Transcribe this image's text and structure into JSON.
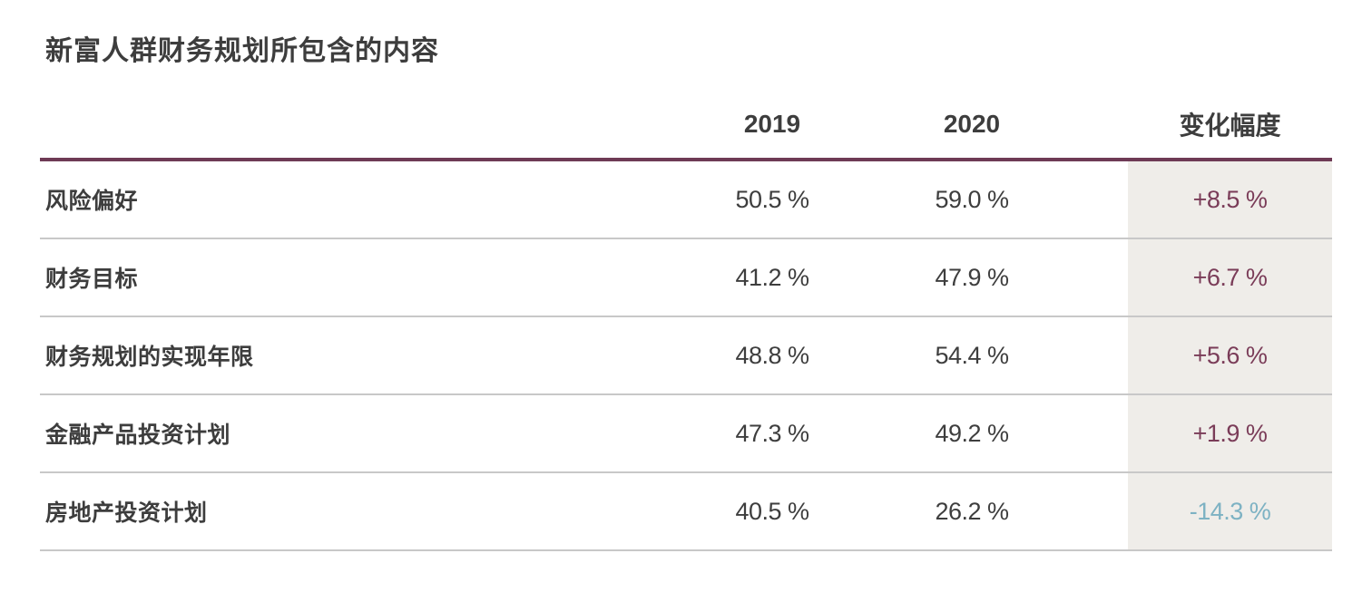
{
  "title": "新富人群财务规划所包含的内容",
  "table": {
    "headers": {
      "col_2019": "2019",
      "col_2020": "2020",
      "col_change": "变化幅度"
    },
    "rows": [
      {
        "label": "风险偏好",
        "y2019": "50.5 %",
        "y2020": "59.0 %",
        "change": "+8.5 %",
        "direction": "up"
      },
      {
        "label": "财务目标",
        "y2019": "41.2 %",
        "y2020": "47.9 %",
        "change": "+6.7 %",
        "direction": "up"
      },
      {
        "label": "财务规划的实现年限",
        "y2019": "48.8 %",
        "y2020": "54.4 %",
        "change": "+5.6 %",
        "direction": "up"
      },
      {
        "label": "金融产品投资计划",
        "y2019": "47.3 %",
        "y2020": "49.2 %",
        "change": "+1.9 %",
        "direction": "up"
      },
      {
        "label": "房地产投资计划",
        "y2019": "40.5 %",
        "y2020": "26.2 %",
        "change": "-14.3 %",
        "direction": "down"
      }
    ]
  },
  "colors": {
    "text_dark": "#3d3d3d",
    "accent_line_maroon": "#6e3a55",
    "change_positive": "#7a3c58",
    "change_negative": "#7db2c3",
    "change_column_bg": "#efede9",
    "row_separator": "#c8c8c8"
  },
  "chart_data": {
    "type": "table",
    "title": "新富人群财务规划所包含的内容",
    "columns": [
      "",
      "2019",
      "2020",
      "变化幅度"
    ],
    "rows": [
      [
        "风险偏好",
        "50.5 %",
        "59.0 %",
        "+8.5 %"
      ],
      [
        "财务目标",
        "41.2 %",
        "47.9 %",
        "+6.7 %"
      ],
      [
        "财务规划的实现年限",
        "48.8 %",
        "54.4 %",
        "+5.6 %"
      ],
      [
        "金融产品投资计划",
        "47.3 %",
        "49.2 %",
        "+1.9 %"
      ],
      [
        "房地产投资计划",
        "40.5 %",
        "26.2 %",
        "-14.3 %"
      ]
    ],
    "series": [
      {
        "name": "2019",
        "values": [
          50.5,
          41.2,
          48.8,
          47.3,
          40.5
        ]
      },
      {
        "name": "2020",
        "values": [
          59.0,
          47.9,
          54.4,
          49.2,
          26.2
        ]
      },
      {
        "name": "变化幅度",
        "values": [
          8.5,
          6.7,
          5.6,
          1.9,
          -14.3
        ]
      }
    ],
    "categories": [
      "风险偏好",
      "财务目标",
      "财务规划的实现年限",
      "金融产品投资计划",
      "房地产投资计划"
    ],
    "unit": "%"
  }
}
